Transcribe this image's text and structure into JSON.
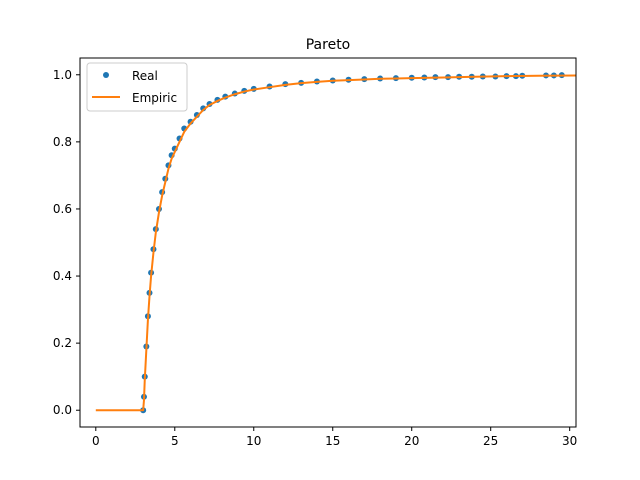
{
  "chart_data": {
    "type": "scatter",
    "title": "Pareto",
    "xlabel": "",
    "ylabel": "",
    "xlim": [
      -1.0,
      30.4
    ],
    "ylim": [
      -0.05,
      1.05
    ],
    "xticks": [
      0,
      5,
      10,
      15,
      20,
      25,
      30
    ],
    "yticks": [
      0.0,
      0.2,
      0.4,
      0.6,
      0.8,
      1.0
    ],
    "xtick_labels": [
      "0",
      "5",
      "10",
      "15",
      "20",
      "25",
      "30"
    ],
    "ytick_labels": [
      "0.0",
      "0.2",
      "0.4",
      "0.6",
      "0.8",
      "1.0"
    ],
    "grid": false,
    "legend": {
      "placement": "top-left"
    },
    "series": [
      {
        "name": "Real",
        "kind": "points",
        "color": "#1f77b4",
        "x": [
          3.0,
          3.05,
          3.1,
          3.2,
          3.3,
          3.4,
          3.5,
          3.65,
          3.8,
          4.0,
          4.2,
          4.4,
          4.6,
          4.8,
          5.0,
          5.3,
          5.6,
          6.0,
          6.4,
          6.8,
          7.2,
          7.7,
          8.2,
          8.8,
          9.4,
          10.0,
          11.0,
          12.0,
          13.0,
          14.0,
          15.0,
          16.0,
          17.0,
          18.0,
          19.0,
          20.0,
          20.8,
          21.5,
          22.3,
          23.0,
          23.8,
          24.5,
          25.3,
          26.0,
          26.6,
          27.0,
          28.5,
          29.0,
          29.5
        ],
        "y": [
          0.0,
          0.04,
          0.1,
          0.19,
          0.28,
          0.35,
          0.41,
          0.48,
          0.54,
          0.6,
          0.65,
          0.69,
          0.73,
          0.76,
          0.78,
          0.81,
          0.84,
          0.86,
          0.88,
          0.9,
          0.913,
          0.925,
          0.935,
          0.944,
          0.952,
          0.958,
          0.965,
          0.972,
          0.976,
          0.98,
          0.983,
          0.985,
          0.987,
          0.989,
          0.99,
          0.991,
          0.992,
          0.993,
          0.993,
          0.994,
          0.994,
          0.995,
          0.995,
          0.996,
          0.996,
          0.997,
          0.998,
          0.998,
          0.999
        ]
      },
      {
        "name": "Empiric",
        "kind": "line",
        "color": "#ff7f0e",
        "x": [
          0.0,
          2.95,
          3.0,
          3.05,
          3.1,
          3.2,
          3.3,
          3.4,
          3.5,
          3.65,
          3.8,
          4.0,
          4.2,
          4.4,
          4.6,
          4.8,
          5.0,
          5.3,
          5.6,
          6.0,
          6.4,
          6.8,
          7.2,
          7.7,
          8.2,
          8.8,
          9.4,
          10.0,
          11.0,
          12.0,
          13.0,
          14.0,
          15.0,
          16.0,
          17.0,
          18.0,
          19.0,
          20.0,
          22.0,
          24.0,
          26.0,
          28.0,
          30.4
        ],
        "y": [
          0.0,
          0.0,
          0.0,
          0.03,
          0.09,
          0.18,
          0.27,
          0.34,
          0.4,
          0.47,
          0.53,
          0.59,
          0.64,
          0.68,
          0.72,
          0.75,
          0.77,
          0.8,
          0.83,
          0.855,
          0.875,
          0.895,
          0.91,
          0.922,
          0.932,
          0.942,
          0.95,
          0.956,
          0.963,
          0.97,
          0.975,
          0.979,
          0.982,
          0.984,
          0.986,
          0.988,
          0.989,
          0.99,
          0.992,
          0.994,
          0.996,
          0.997,
          0.998
        ]
      }
    ]
  }
}
